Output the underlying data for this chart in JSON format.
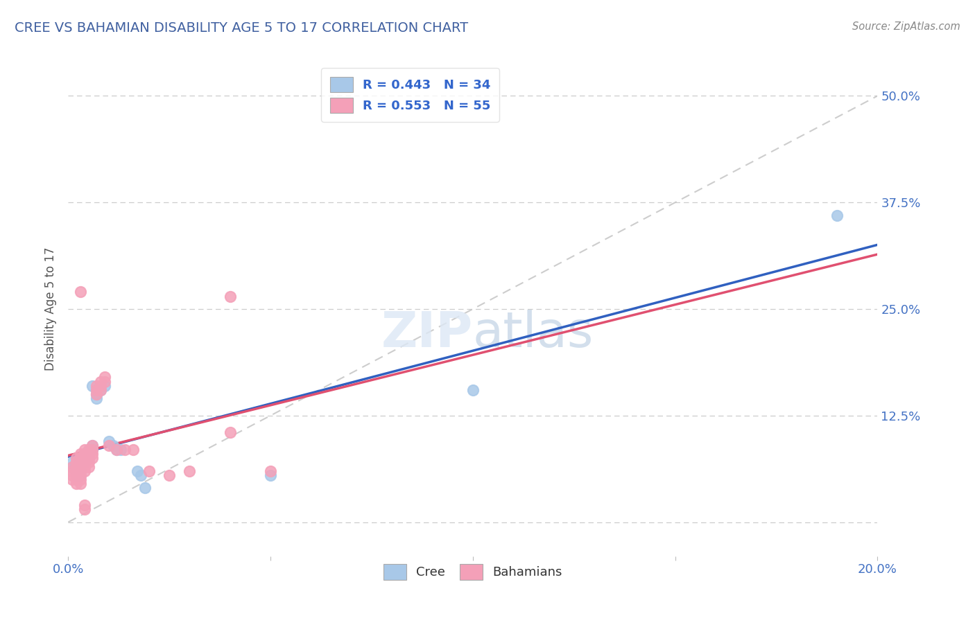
{
  "title": "CREE VS BAHAMIAN DISABILITY AGE 5 TO 17 CORRELATION CHART",
  "source": "Source: ZipAtlas.com",
  "ylabel": "Disability Age 5 to 17",
  "xlim": [
    0.0,
    0.2
  ],
  "ylim": [
    -0.04,
    0.54
  ],
  "xticks": [
    0.0,
    0.05,
    0.1,
    0.15,
    0.2
  ],
  "yticks": [
    0.0,
    0.125,
    0.25,
    0.375,
    0.5
  ],
  "right_ytick_labels": [
    "",
    "12.5%",
    "25.0%",
    "37.5%",
    "50.0%"
  ],
  "xtick_labels": [
    "0.0%",
    "",
    "",
    "",
    "20.0%"
  ],
  "cree_R": 0.443,
  "cree_N": 34,
  "bahamian_R": 0.553,
  "bahamian_N": 55,
  "cree_color": "#a8c8e8",
  "bahamian_color": "#f4a0b8",
  "cree_line_color": "#3060c0",
  "bahamian_line_color": "#e05070",
  "trend_line_color": "#c8c8c8",
  "background_color": "#ffffff",
  "grid_color": "#cccccc",
  "title_color": "#4060a0",
  "legend_text_color": "#3366cc",
  "axis_color": "#4472c4",
  "cree_scatter": [
    [
      0.001,
      0.07
    ],
    [
      0.001,
      0.065
    ],
    [
      0.002,
      0.07
    ],
    [
      0.002,
      0.065
    ],
    [
      0.002,
      0.06
    ],
    [
      0.002,
      0.055
    ],
    [
      0.003,
      0.075
    ],
    [
      0.003,
      0.068
    ],
    [
      0.003,
      0.06
    ],
    [
      0.003,
      0.055
    ],
    [
      0.004,
      0.08
    ],
    [
      0.004,
      0.075
    ],
    [
      0.004,
      0.07
    ],
    [
      0.005,
      0.085
    ],
    [
      0.005,
      0.08
    ],
    [
      0.005,
      0.075
    ],
    [
      0.006,
      0.09
    ],
    [
      0.006,
      0.085
    ],
    [
      0.006,
      0.16
    ],
    [
      0.007,
      0.155
    ],
    [
      0.007,
      0.15
    ],
    [
      0.007,
      0.145
    ],
    [
      0.008,
      0.155
    ],
    [
      0.009,
      0.16
    ],
    [
      0.01,
      0.095
    ],
    [
      0.011,
      0.09
    ],
    [
      0.012,
      0.085
    ],
    [
      0.013,
      0.085
    ],
    [
      0.017,
      0.06
    ],
    [
      0.018,
      0.055
    ],
    [
      0.019,
      0.04
    ],
    [
      0.05,
      0.055
    ],
    [
      0.1,
      0.155
    ],
    [
      0.19,
      0.36
    ]
  ],
  "bahamian_scatter": [
    [
      0.001,
      0.065
    ],
    [
      0.001,
      0.06
    ],
    [
      0.001,
      0.055
    ],
    [
      0.001,
      0.05
    ],
    [
      0.002,
      0.075
    ],
    [
      0.002,
      0.07
    ],
    [
      0.002,
      0.065
    ],
    [
      0.002,
      0.06
    ],
    [
      0.002,
      0.055
    ],
    [
      0.002,
      0.05
    ],
    [
      0.002,
      0.045
    ],
    [
      0.003,
      0.08
    ],
    [
      0.003,
      0.075
    ],
    [
      0.003,
      0.07
    ],
    [
      0.003,
      0.065
    ],
    [
      0.003,
      0.06
    ],
    [
      0.003,
      0.055
    ],
    [
      0.003,
      0.05
    ],
    [
      0.003,
      0.045
    ],
    [
      0.004,
      0.085
    ],
    [
      0.004,
      0.08
    ],
    [
      0.004,
      0.075
    ],
    [
      0.004,
      0.07
    ],
    [
      0.004,
      0.065
    ],
    [
      0.004,
      0.06
    ],
    [
      0.004,
      0.02
    ],
    [
      0.004,
      0.015
    ],
    [
      0.005,
      0.085
    ],
    [
      0.005,
      0.08
    ],
    [
      0.005,
      0.075
    ],
    [
      0.005,
      0.07
    ],
    [
      0.005,
      0.065
    ],
    [
      0.006,
      0.09
    ],
    [
      0.006,
      0.085
    ],
    [
      0.006,
      0.08
    ],
    [
      0.006,
      0.075
    ],
    [
      0.007,
      0.16
    ],
    [
      0.007,
      0.155
    ],
    [
      0.007,
      0.15
    ],
    [
      0.008,
      0.165
    ],
    [
      0.008,
      0.16
    ],
    [
      0.008,
      0.155
    ],
    [
      0.009,
      0.17
    ],
    [
      0.009,
      0.165
    ],
    [
      0.01,
      0.09
    ],
    [
      0.012,
      0.085
    ],
    [
      0.014,
      0.085
    ],
    [
      0.016,
      0.085
    ],
    [
      0.02,
      0.06
    ],
    [
      0.025,
      0.055
    ],
    [
      0.03,
      0.06
    ],
    [
      0.04,
      0.105
    ],
    [
      0.05,
      0.06
    ],
    [
      0.04,
      0.265
    ],
    [
      0.003,
      0.27
    ]
  ]
}
